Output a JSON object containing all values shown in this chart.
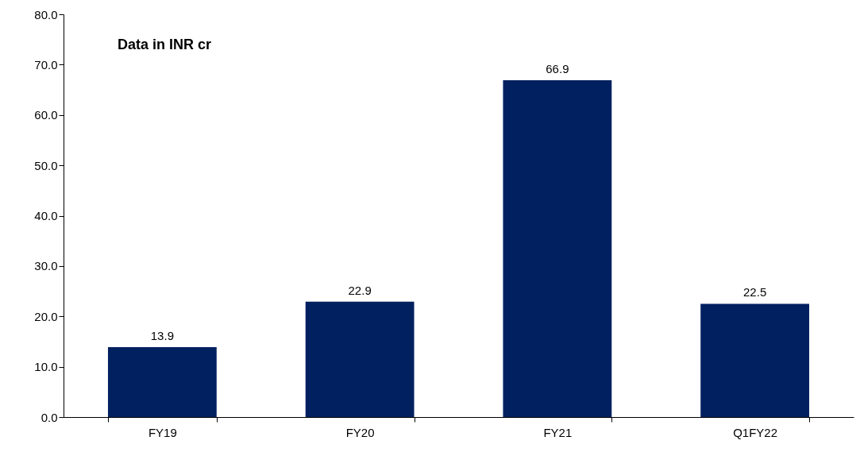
{
  "chart_data": {
    "type": "bar",
    "categories": [
      "FY19",
      "FY20",
      "FY21",
      "Q1FY22"
    ],
    "values": [
      13.9,
      22.9,
      66.9,
      22.5
    ],
    "color": "#002060",
    "data_labels": true,
    "ylim": [
      0,
      80
    ],
    "yticks": [
      {
        "value": 0,
        "label": "0.0"
      },
      {
        "value": 10,
        "label": "10.0"
      },
      {
        "value": 20,
        "label": "20.0"
      },
      {
        "value": 30,
        "label": "30.0"
      },
      {
        "value": 40,
        "label": "40.0"
      },
      {
        "value": 50,
        "label": "50.0"
      },
      {
        "value": 60,
        "label": "60.0"
      },
      {
        "value": 70,
        "label": "70.0"
      },
      {
        "value": 80,
        "label": "80.0"
      }
    ],
    "grid": false,
    "annotations": [
      "Data in INR cr"
    ]
  }
}
